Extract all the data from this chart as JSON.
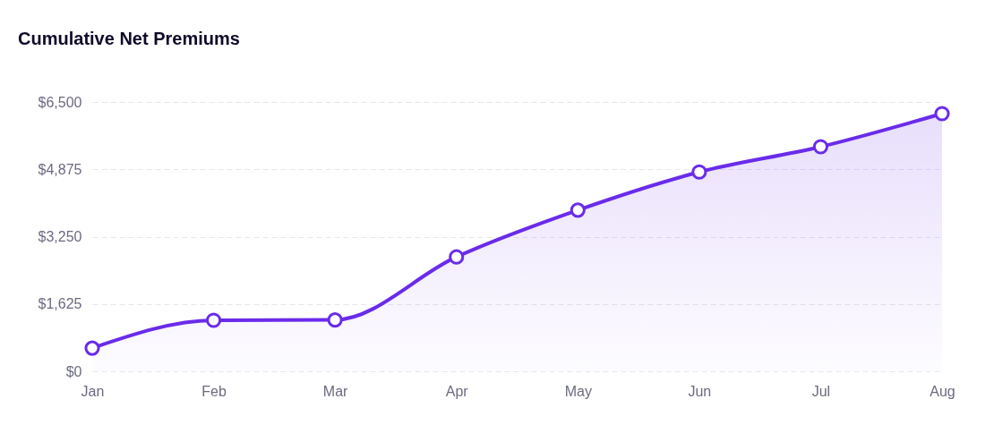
{
  "chart_data": {
    "type": "area",
    "title": "Cumulative Net Premiums",
    "categories": [
      "Jan",
      "Feb",
      "Mar",
      "Apr",
      "May",
      "Jun",
      "Jul",
      "Aug"
    ],
    "series": [
      {
        "color": "#6a2bea",
        "values": [
          560,
          1230,
          1240,
          2760,
          3890,
          4810,
          5420,
          6220
        ]
      }
    ],
    "ylim": [
      0,
      6500
    ],
    "yticks": [
      {
        "value": 0,
        "label": "$0"
      },
      {
        "value": 1625,
        "label": "$1,625"
      },
      {
        "value": 3250,
        "label": "$3,250"
      },
      {
        "value": 4875,
        "label": "$4,875"
      },
      {
        "value": 6500,
        "label": "$6,500"
      }
    ],
    "grid": "y",
    "marker": "circle"
  }
}
